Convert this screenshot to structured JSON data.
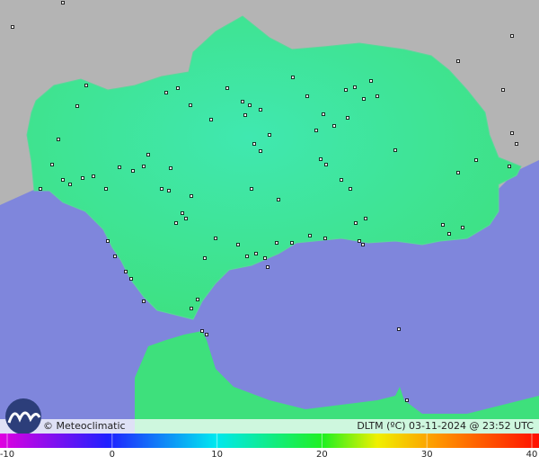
{
  "map": {
    "brand": "© Meteoclimatic",
    "caption": "DLTM (ºC) 03-11-2024 @ 23:52 UTC",
    "colorbar": {
      "lim": [
        -10,
        40
      ],
      "ticks": [
        -10,
        0,
        10,
        20,
        30,
        40
      ]
    }
  }
}
